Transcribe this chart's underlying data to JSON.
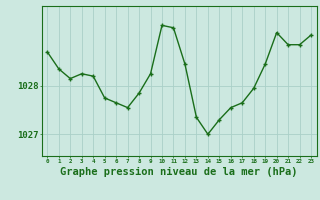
{
  "x": [
    0,
    1,
    2,
    3,
    4,
    5,
    6,
    7,
    8,
    9,
    10,
    11,
    12,
    13,
    14,
    15,
    16,
    17,
    18,
    19,
    20,
    21,
    22,
    23
  ],
  "y": [
    1028.7,
    1028.35,
    1028.15,
    1028.25,
    1028.2,
    1027.75,
    1027.65,
    1027.55,
    1027.85,
    1028.25,
    1029.25,
    1029.2,
    1028.45,
    1027.35,
    1027.0,
    1027.3,
    1027.55,
    1027.65,
    1027.95,
    1028.45,
    1029.1,
    1028.85,
    1028.85,
    1029.05
  ],
  "line_color": "#1a6e1a",
  "marker_color": "#1a6e1a",
  "bg_color": "#cce8e0",
  "grid_color": "#aad0c8",
  "axis_color": "#1a6e1a",
  "xlabel": "Graphe pression niveau de la mer (hPa)",
  "xlabel_fontsize": 7.5,
  "ytick_labels": [
    "1027",
    "1028"
  ],
  "ytick_values": [
    1027.0,
    1028.0
  ],
  "ylim": [
    1026.55,
    1029.65
  ],
  "xlim": [
    -0.5,
    23.5
  ],
  "marker_size": 2.5,
  "line_width": 1.0
}
